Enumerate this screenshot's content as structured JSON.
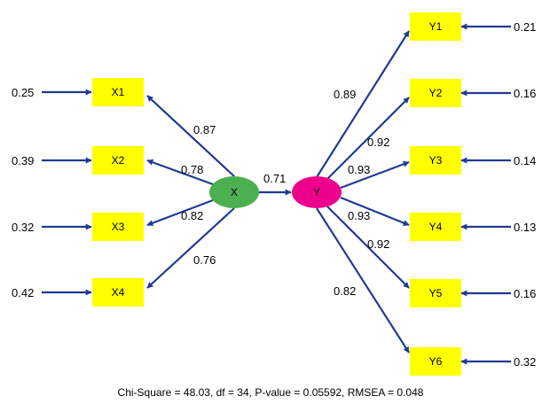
{
  "colors": {
    "box_fill": "#ffff00",
    "arrow": "#1f3a93",
    "latent_x": "#4caf50",
    "latent_y": "#ec008c"
  },
  "latents": {
    "x": {
      "label": "X"
    },
    "y": {
      "label": "Y"
    },
    "path_coefficient": "0.71"
  },
  "x_indicators": [
    {
      "label": "X1",
      "loading": "0.87",
      "error": "0.25"
    },
    {
      "label": "X2",
      "loading": "0.78",
      "error": "0.39"
    },
    {
      "label": "X3",
      "loading": "0.82",
      "error": "0.32"
    },
    {
      "label": "X4",
      "loading": "0.76",
      "error": "0.42"
    }
  ],
  "y_indicators": [
    {
      "label": "Y1",
      "loading": "0.89",
      "error": "0.21"
    },
    {
      "label": "Y2",
      "loading": "0.92",
      "error": "0.16"
    },
    {
      "label": "Y3",
      "loading": "0.93",
      "error": "0.14"
    },
    {
      "label": "Y4",
      "loading": "0.93",
      "error": "0.13"
    },
    {
      "label": "Y5",
      "loading": "0.92",
      "error": "0.16"
    },
    {
      "label": "Y6",
      "loading": "0.82",
      "error": "0.32"
    }
  ],
  "fit_statistics": "Chi-Square = 48.03, df = 34, P-value = 0.05592, RMSEA = 0.048"
}
